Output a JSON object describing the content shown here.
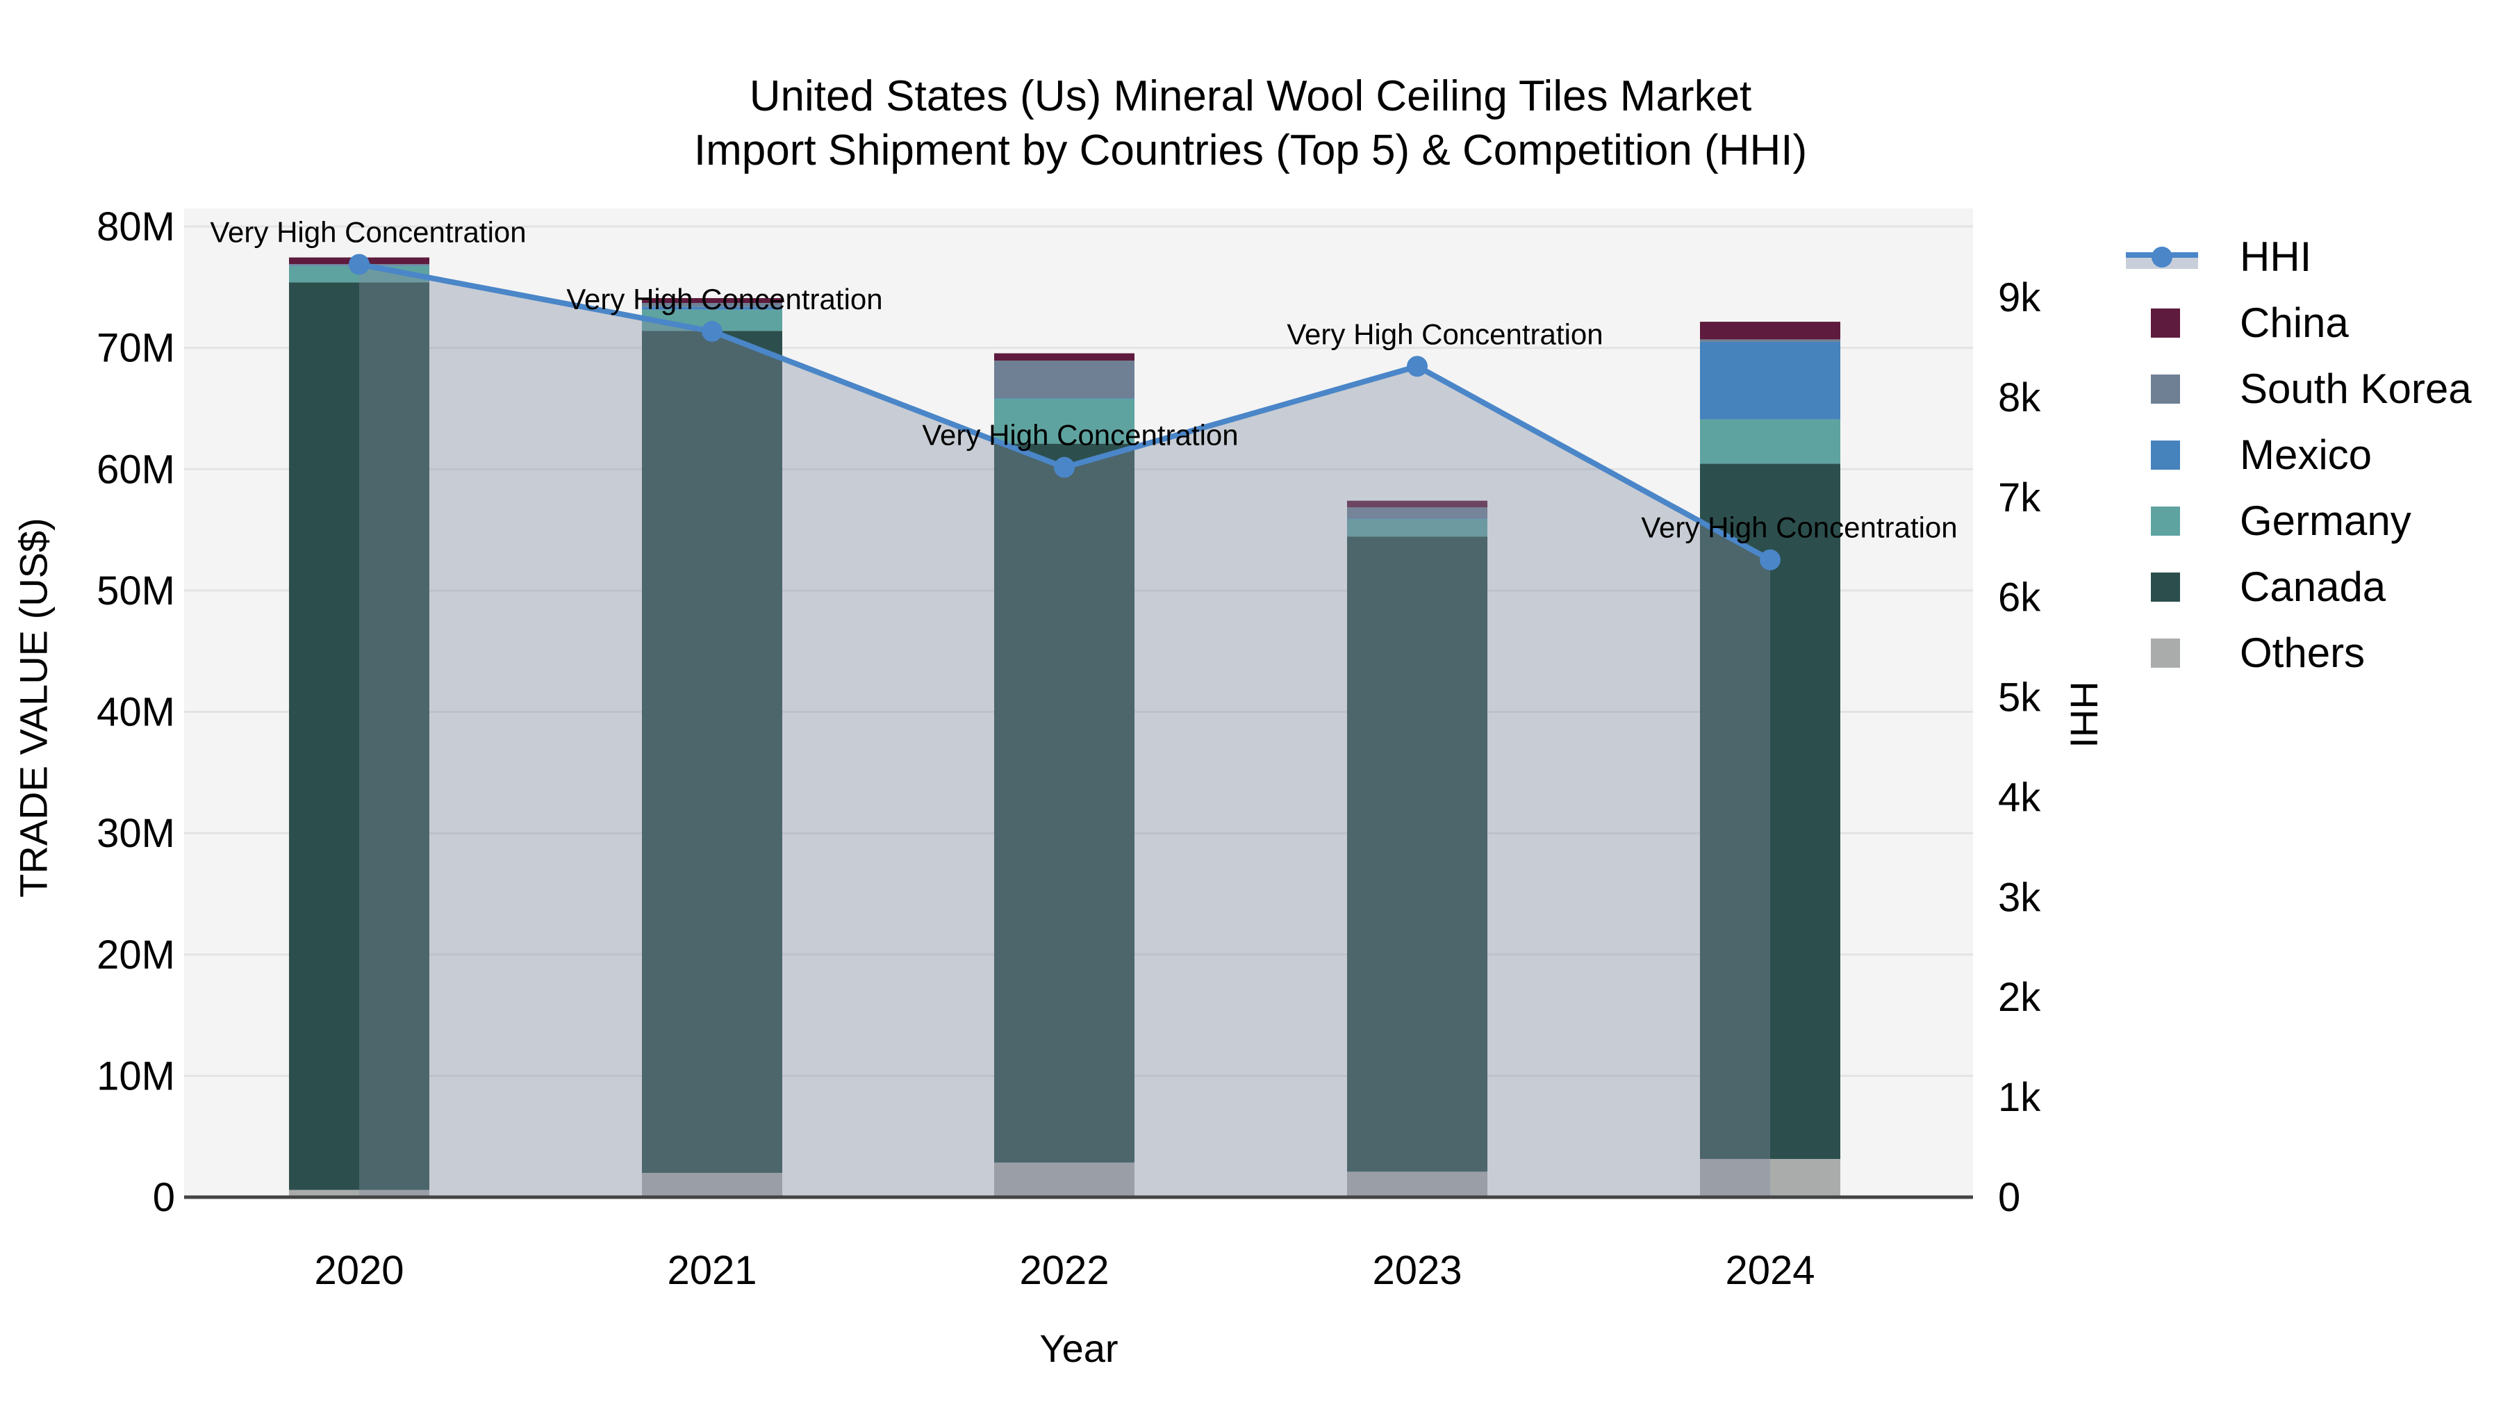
{
  "title": {
    "line1": "United States (Us) Mineral Wool Ceiling Tiles Market",
    "line2": "Import Shipment by Countries (Top 5) & Competition (HHI)"
  },
  "axes": {
    "x_title": "Year",
    "y_left_title": "TRADE VALUE (US$)",
    "y_right_title": "HHI",
    "x_ticks": [
      "2020",
      "2021",
      "2022",
      "2023",
      "2024"
    ],
    "y_left_ticks": [
      "0",
      "10M",
      "20M",
      "30M",
      "40M",
      "50M",
      "60M",
      "70M",
      "80M"
    ],
    "y_right_ticks": [
      "0",
      "1k",
      "2k",
      "3k",
      "4k",
      "5k",
      "6k",
      "7k",
      "8k",
      "9k"
    ]
  },
  "chart_data": {
    "type": "bar",
    "stacked": true,
    "categories": [
      "2020",
      "2021",
      "2022",
      "2023",
      "2024"
    ],
    "bar_unit": "trade value, millions US$",
    "ylim_left_millions": [
      0,
      80
    ],
    "ylim_right_hhi": [
      0,
      9000
    ],
    "grid": true,
    "legend_position": "right",
    "series": [
      {
        "name": "Others",
        "color": "#AAACAC",
        "values": [
          0.6,
          2.0,
          2.85,
          2.1,
          3.15
        ]
      },
      {
        "name": "Canada",
        "color": "#2C4F4D",
        "values": [
          74.8,
          69.4,
          59.25,
          52.35,
          57.3
        ]
      },
      {
        "name": "Germany",
        "color": "#5FA3A0",
        "values": [
          1.35,
          1.75,
          3.7,
          1.45,
          3.65
        ]
      },
      {
        "name": "Mexico",
        "color": "#4682BC",
        "values": [
          0.05,
          0.25,
          0.05,
          0.05,
          6.4
        ]
      },
      {
        "name": "South Korea",
        "color": "#6F8094",
        "values": [
          0.1,
          0.3,
          3.1,
          0.9,
          0.2
        ]
      },
      {
        "name": "China",
        "color": "#5E1B3D",
        "values": [
          0.55,
          0.4,
          0.6,
          0.55,
          1.45
        ]
      }
    ],
    "line_series": {
      "name": "HHI",
      "color": "#4A86C8",
      "fill_color": "#828CA0",
      "fill_opacity": 0.38,
      "values": [
        9330,
        8660,
        7300,
        8310,
        6375
      ]
    },
    "annotations": [
      {
        "category": "2020",
        "text": "Very High Concentration"
      },
      {
        "category": "2021",
        "text": "Very High Concentration"
      },
      {
        "category": "2022",
        "text": "Very High Concentration"
      },
      {
        "category": "2023",
        "text": "Very High Concentration"
      },
      {
        "category": "2024",
        "text": "Very High Concentration"
      }
    ]
  },
  "legend": {
    "items": [
      {
        "label": "HHI",
        "type": "line",
        "color": "#4A86C8"
      },
      {
        "label": "China",
        "type": "swatch",
        "color": "#5E1B3D"
      },
      {
        "label": "South Korea",
        "type": "swatch",
        "color": "#6F8094"
      },
      {
        "label": "Mexico",
        "type": "swatch",
        "color": "#4682BC"
      },
      {
        "label": "Germany",
        "type": "swatch",
        "color": "#5FA3A0"
      },
      {
        "label": "Canada",
        "type": "swatch",
        "color": "#2C4F4D"
      },
      {
        "label": "Others",
        "type": "swatch",
        "color": "#AAACAC"
      }
    ]
  },
  "style": {
    "plot_bg": "#F4F4F4",
    "grid_color": "#E3E3E3",
    "axis_line_color": "#444444",
    "text_color": "#000000"
  }
}
